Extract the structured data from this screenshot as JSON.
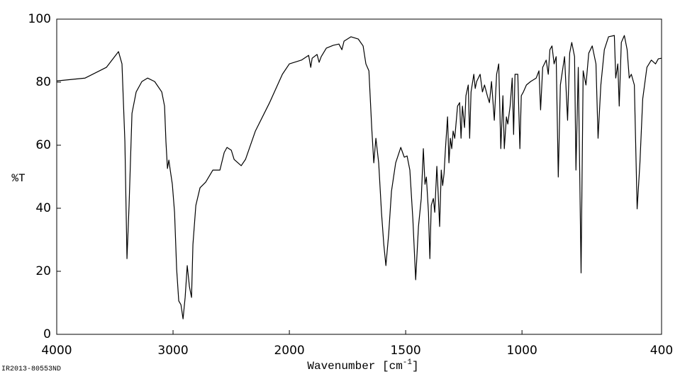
{
  "chart_data": {
    "type": "line",
    "xlabel": [
      "Wavenumber [cm",
      "-1",
      "]"
    ],
    "ylabel": "%T",
    "footer": "IR2013-80553ND",
    "color": "#000000",
    "xlim": [
      4000,
      400
    ],
    "x_scale": "piecewise",
    "x_break": 2000,
    "x_break_scale": 0.5,
    "xticks": [
      4000,
      3000,
      2000,
      1500,
      1000,
      400
    ],
    "ylim": [
      0,
      100
    ],
    "yticks": [
      0,
      20,
      40,
      60,
      80,
      100
    ],
    "x": [
      4000,
      3756,
      3573,
      3469,
      3439,
      3414,
      3396,
      3378,
      3353,
      3317,
      3268,
      3219,
      3158,
      3097,
      3073,
      3061,
      3048,
      3036,
      3024,
      3006,
      2987,
      2969,
      2951,
      2932,
      2914,
      2896,
      2878,
      2859,
      2841,
      2829,
      2804,
      2768,
      2719,
      2658,
      2597,
      2560,
      2536,
      2499,
      2475,
      2414,
      2377,
      2292,
      2170,
      2060,
      2000,
      1948,
      1917,
      1908,
      1902,
      1881,
      1872,
      1863,
      1841,
      1811,
      1787,
      1774,
      1765,
      1735,
      1704,
      1683,
      1671,
      1658,
      1646,
      1637,
      1628,
      1616,
      1604,
      1594,
      1585,
      1573,
      1561,
      1543,
      1521,
      1506,
      1494,
      1482,
      1469,
      1457,
      1445,
      1433,
      1424,
      1417,
      1411,
      1402,
      1396,
      1390,
      1381,
      1375,
      1366,
      1360,
      1354,
      1347,
      1341,
      1335,
      1329,
      1320,
      1314,
      1308,
      1302,
      1296,
      1289,
      1277,
      1268,
      1262,
      1256,
      1247,
      1241,
      1231,
      1225,
      1219,
      1207,
      1201,
      1195,
      1180,
      1170,
      1161,
      1149,
      1140,
      1131,
      1119,
      1109,
      1100,
      1091,
      1082,
      1076,
      1067,
      1061,
      1051,
      1042,
      1036,
      1030,
      1018,
      1009,
      1003,
      994,
      981,
      963,
      939,
      927,
      920,
      911,
      896,
      887,
      880,
      871,
      862,
      853,
      844,
      835,
      817,
      804,
      795,
      786,
      774,
      768,
      758,
      746,
      737,
      725,
      713,
      698,
      682,
      673,
      661,
      646,
      628,
      603,
      597,
      588,
      582,
      573,
      560,
      548,
      539,
      530,
      517,
      505,
      493,
      481,
      463,
      444,
      426,
      414,
      400
    ],
    "values": [
      80.4,
      81.3,
      84.7,
      89.7,
      85.8,
      61.1,
      24.0,
      40.9,
      70.1,
      76.9,
      80.2,
      81.3,
      80.2,
      76.9,
      72.4,
      61.1,
      52.6,
      55.3,
      52.1,
      47.6,
      38.7,
      20.7,
      10.6,
      9.4,
      4.9,
      11.7,
      21.8,
      15.1,
      11.7,
      28.5,
      40.9,
      46.5,
      48.3,
      52.1,
      52.1,
      57.7,
      59.3,
      58.4,
      55.5,
      53.5,
      55.5,
      64.5,
      73.5,
      82.5,
      85.8,
      87.0,
      88.5,
      84.7,
      87.6,
      88.8,
      86.3,
      88.1,
      90.8,
      91.7,
      92.1,
      90.3,
      93.0,
      94.4,
      93.7,
      91.5,
      85.8,
      83.6,
      65.6,
      54.4,
      62.2,
      54.4,
      38.7,
      28.5,
      21.8,
      31.9,
      45.4,
      54.4,
      59.3,
      56.2,
      56.6,
      52.1,
      36.4,
      17.3,
      34.2,
      43.1,
      58.9,
      47.6,
      49.9,
      38.7,
      24.0,
      40.9,
      43.1,
      38.7,
      53.3,
      44.3,
      34.2,
      52.1,
      47.2,
      51.0,
      58.9,
      69.0,
      54.4,
      62.2,
      58.9,
      64.5,
      62.2,
      72.4,
      73.5,
      62.2,
      72.4,
      65.6,
      75.7,
      79.1,
      62.2,
      76.9,
      82.5,
      78.0,
      80.2,
      82.5,
      76.9,
      79.1,
      75.7,
      73.5,
      80.2,
      67.9,
      82.5,
      85.8,
      58.9,
      75.7,
      58.9,
      69.0,
      66.7,
      72.4,
      81.3,
      63.4,
      82.5,
      82.5,
      58.9,
      75.7,
      76.9,
      79.1,
      80.2,
      81.3,
      83.6,
      71.2,
      84.7,
      87.0,
      82.5,
      90.3,
      91.5,
      85.8,
      88.1,
      49.9,
      79.1,
      88.1,
      67.9,
      89.2,
      92.6,
      88.1,
      52.1,
      84.7,
      19.5,
      83.6,
      79.1,
      89.2,
      91.5,
      85.8,
      62.2,
      79.1,
      90.3,
      94.4,
      94.8,
      81.3,
      85.8,
      72.4,
      92.6,
      94.8,
      90.3,
      81.3,
      82.5,
      79.1,
      39.8,
      54.4,
      74.7,
      84.7,
      87.0,
      85.8,
      87.4,
      87.6
    ]
  }
}
